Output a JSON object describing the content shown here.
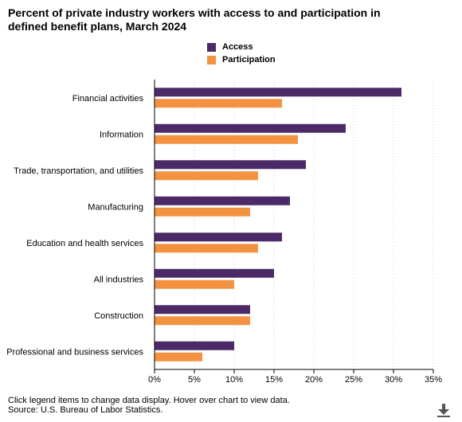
{
  "title": "Percent of private industry workers with access to and participation in defined benefit plans, March 2024",
  "legend": [
    {
      "label": "Access",
      "color": "#4b2a67"
    },
    {
      "label": "Participation",
      "color": "#f39342"
    }
  ],
  "footer": {
    "note": "Click legend items to change data display. Hover over chart to view data.",
    "source": "Source: U.S. Bureau of Labor Statistics."
  },
  "download_icon": "download-icon",
  "chart_data": {
    "type": "bar",
    "orientation": "horizontal",
    "categories": [
      "Financial activities",
      "Information",
      "Trade, transportation, and utilities",
      "Manufacturing",
      "Education and health services",
      "All industries",
      "Construction",
      "Professional and business services"
    ],
    "series": [
      {
        "name": "Access",
        "color": "#4b2a67",
        "values": [
          31,
          24,
          19,
          17,
          16,
          15,
          12,
          10
        ]
      },
      {
        "name": "Participation",
        "color": "#f39342",
        "values": [
          16,
          18,
          13,
          12,
          13,
          10,
          12,
          6
        ]
      }
    ],
    "xlim": [
      0,
      35
    ],
    "xticks": [
      0,
      5,
      10,
      15,
      20,
      25,
      30,
      35
    ],
    "tick_suffix": "%",
    "grid": "vertical dotted",
    "legend_position": "top-center"
  }
}
